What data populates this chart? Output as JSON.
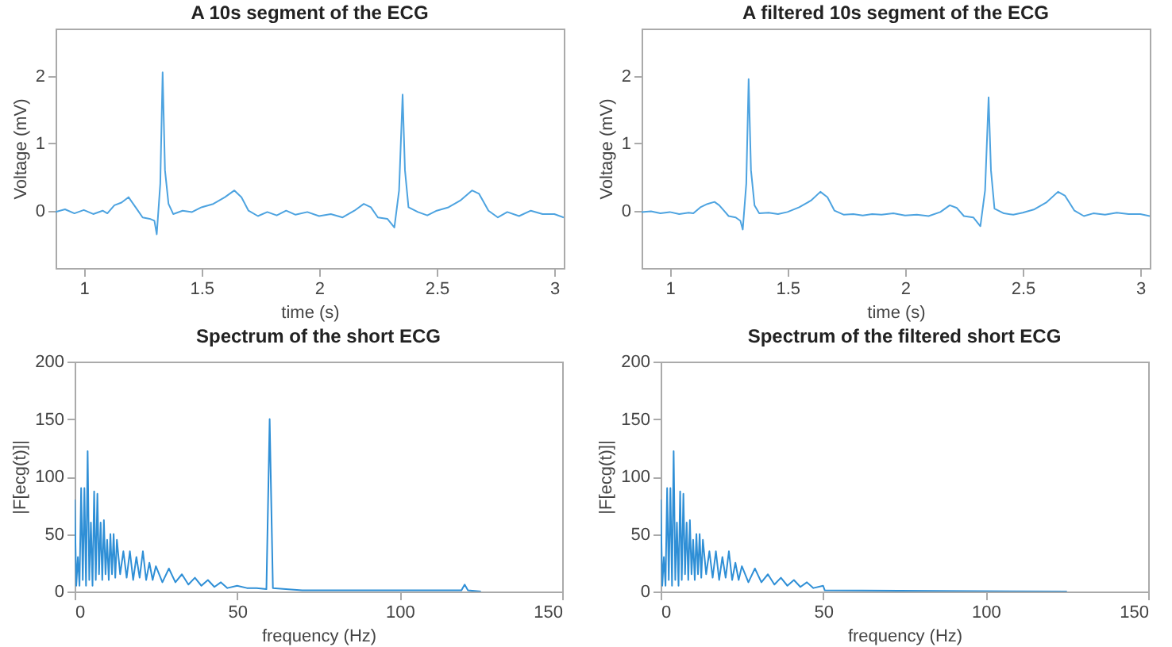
{
  "chart_data": [
    {
      "type": "line",
      "title": "A 10s segment of the ECG",
      "xlabel": "time (s)",
      "ylabel": "Voltage (mV)",
      "xlim": [
        0.88,
        3.04
      ],
      "ylim": [
        -0.85,
        2.7
      ],
      "xticks": [
        1,
        1.5,
        2,
        2.5,
        3
      ],
      "yticks": [
        0,
        1,
        2
      ],
      "x": [
        0.88,
        0.92,
        0.96,
        1.0,
        1.04,
        1.08,
        1.1,
        1.13,
        1.16,
        1.19,
        1.21,
        1.23,
        1.25,
        1.28,
        1.3,
        1.31,
        1.325,
        1.335,
        1.345,
        1.36,
        1.38,
        1.42,
        1.46,
        1.5,
        1.55,
        1.6,
        1.64,
        1.67,
        1.7,
        1.74,
        1.78,
        1.82,
        1.86,
        1.9,
        1.95,
        2.0,
        2.05,
        2.1,
        2.15,
        2.19,
        2.22,
        2.25,
        2.29,
        2.32,
        2.34,
        2.355,
        2.365,
        2.38,
        2.42,
        2.46,
        2.5,
        2.55,
        2.6,
        2.65,
        2.68,
        2.72,
        2.76,
        2.8,
        2.85,
        2.9,
        2.95,
        3.0,
        3.04
      ],
      "series": [
        {
          "color": "#4da3e0",
          "values": [
            -0.02,
            0.02,
            -0.04,
            0.01,
            -0.05,
            0.0,
            -0.04,
            0.08,
            0.12,
            0.2,
            0.1,
            0.0,
            -0.1,
            -0.12,
            -0.15,
            -0.35,
            0.4,
            2.05,
            0.6,
            0.1,
            -0.05,
            0.0,
            -0.02,
            0.05,
            0.1,
            0.2,
            0.3,
            0.2,
            0.0,
            -0.08,
            -0.02,
            -0.07,
            0.0,
            -0.06,
            -0.02,
            -0.08,
            -0.05,
            -0.1,
            0.0,
            0.1,
            0.05,
            -0.1,
            -0.12,
            -0.25,
            0.3,
            1.72,
            0.6,
            0.05,
            -0.02,
            -0.07,
            0.0,
            0.05,
            0.15,
            0.3,
            0.25,
            0.0,
            -0.1,
            -0.02,
            -0.08,
            0.0,
            -0.05,
            -0.05,
            -0.1
          ]
        }
      ]
    },
    {
      "type": "line",
      "title": "A filtered 10s segment of the ECG",
      "xlabel": "time (s)",
      "ylabel": "Voltage (mV)",
      "xlim": [
        0.88,
        3.04
      ],
      "ylim": [
        -0.85,
        2.7
      ],
      "xticks": [
        1,
        1.5,
        2,
        2.5,
        3
      ],
      "yticks": [
        0,
        1,
        2
      ],
      "x": [
        0.88,
        0.92,
        0.96,
        1.0,
        1.04,
        1.08,
        1.1,
        1.13,
        1.16,
        1.19,
        1.21,
        1.23,
        1.25,
        1.28,
        1.3,
        1.31,
        1.325,
        1.335,
        1.345,
        1.36,
        1.38,
        1.42,
        1.46,
        1.5,
        1.55,
        1.6,
        1.64,
        1.67,
        1.7,
        1.74,
        1.78,
        1.82,
        1.86,
        1.9,
        1.95,
        2.0,
        2.05,
        2.1,
        2.15,
        2.19,
        2.22,
        2.25,
        2.29,
        2.32,
        2.34,
        2.355,
        2.365,
        2.38,
        2.42,
        2.46,
        2.5,
        2.55,
        2.6,
        2.65,
        2.68,
        2.72,
        2.76,
        2.8,
        2.85,
        2.9,
        2.95,
        3.0,
        3.04
      ],
      "series": [
        {
          "color": "#4da3e0",
          "values": [
            -0.02,
            -0.01,
            -0.04,
            -0.02,
            -0.05,
            -0.03,
            -0.04,
            0.05,
            0.1,
            0.13,
            0.08,
            0.0,
            -0.08,
            -0.1,
            -0.15,
            -0.28,
            0.4,
            1.95,
            0.6,
            0.08,
            -0.04,
            -0.03,
            -0.05,
            -0.02,
            0.05,
            0.15,
            0.28,
            0.2,
            0.0,
            -0.06,
            -0.05,
            -0.07,
            -0.05,
            -0.06,
            -0.04,
            -0.07,
            -0.06,
            -0.08,
            -0.02,
            0.08,
            0.04,
            -0.08,
            -0.1,
            -0.23,
            0.3,
            1.68,
            0.6,
            0.03,
            -0.04,
            -0.06,
            -0.03,
            0.02,
            0.12,
            0.28,
            0.22,
            0.0,
            -0.08,
            -0.04,
            -0.06,
            -0.03,
            -0.05,
            -0.05,
            -0.08
          ]
        }
      ]
    },
    {
      "type": "line",
      "title": "Spectrum of the short ECG",
      "xlabel": "frequency (Hz)",
      "ylabel": "|F[ecg(t)]|",
      "xlim": [
        0,
        150
      ],
      "ylim": [
        0,
        200
      ],
      "xticks": [
        0,
        50,
        100,
        150
      ],
      "yticks": [
        0,
        50,
        100,
        150,
        200
      ],
      "x": [
        0,
        0.5,
        1,
        1.5,
        2,
        2.5,
        3,
        3.5,
        4,
        4.5,
        5,
        5.5,
        6,
        6.5,
        7,
        7.5,
        8,
        8.5,
        9,
        9.5,
        10,
        10.5,
        11,
        11.5,
        12,
        12.5,
        13,
        14,
        15,
        16,
        17,
        18,
        19,
        20,
        21,
        22,
        23,
        24,
        25,
        27,
        29,
        31,
        33,
        35,
        37,
        39,
        41,
        43,
        45,
        47,
        50,
        53,
        56,
        59,
        60,
        61,
        65,
        70,
        80,
        90,
        100,
        110,
        119,
        120,
        121,
        125
      ],
      "series": [
        {
          "color": "#2f8fd6",
          "values": [
            80,
            5,
            30,
            5,
            90,
            10,
            90,
            5,
            122,
            10,
            60,
            5,
            87,
            10,
            85,
            15,
            60,
            10,
            62,
            15,
            45,
            10,
            50,
            15,
            50,
            12,
            45,
            15,
            35,
            12,
            35,
            10,
            30,
            12,
            35,
            10,
            25,
            10,
            22,
            8,
            20,
            8,
            15,
            6,
            12,
            5,
            10,
            4,
            8,
            3,
            5,
            3,
            3,
            2,
            150,
            3,
            2,
            1,
            1,
            1,
            1,
            1,
            1,
            6,
            1,
            0
          ]
        }
      ]
    },
    {
      "type": "line",
      "title": "Spectrum of the filtered short ECG",
      "xlabel": "frequency (Hz)",
      "ylabel": "|F[ecg(t)]|",
      "xlim": [
        0,
        150
      ],
      "ylim": [
        0,
        200
      ],
      "xticks": [
        0,
        50,
        100,
        150
      ],
      "yticks": [
        0,
        50,
        100,
        150,
        200
      ],
      "x": [
        0,
        0.5,
        1,
        1.5,
        2,
        2.5,
        3,
        3.5,
        4,
        4.5,
        5,
        5.5,
        6,
        6.5,
        7,
        7.5,
        8,
        8.5,
        9,
        9.5,
        10,
        10.5,
        11,
        11.5,
        12,
        12.5,
        13,
        14,
        15,
        16,
        17,
        18,
        19,
        20,
        21,
        22,
        23,
        24,
        25,
        27,
        29,
        31,
        33,
        35,
        37,
        39,
        41,
        43,
        45,
        47,
        50,
        50.5,
        125
      ],
      "series": [
        {
          "color": "#2f8fd6",
          "values": [
            80,
            5,
            30,
            5,
            90,
            10,
            90,
            5,
            122,
            10,
            60,
            5,
            87,
            10,
            85,
            15,
            60,
            10,
            62,
            15,
            45,
            10,
            50,
            15,
            50,
            12,
            45,
            15,
            35,
            12,
            35,
            10,
            30,
            12,
            35,
            10,
            25,
            10,
            22,
            8,
            20,
            8,
            15,
            6,
            12,
            5,
            10,
            4,
            8,
            3,
            5,
            1,
            0
          ]
        }
      ]
    }
  ]
}
